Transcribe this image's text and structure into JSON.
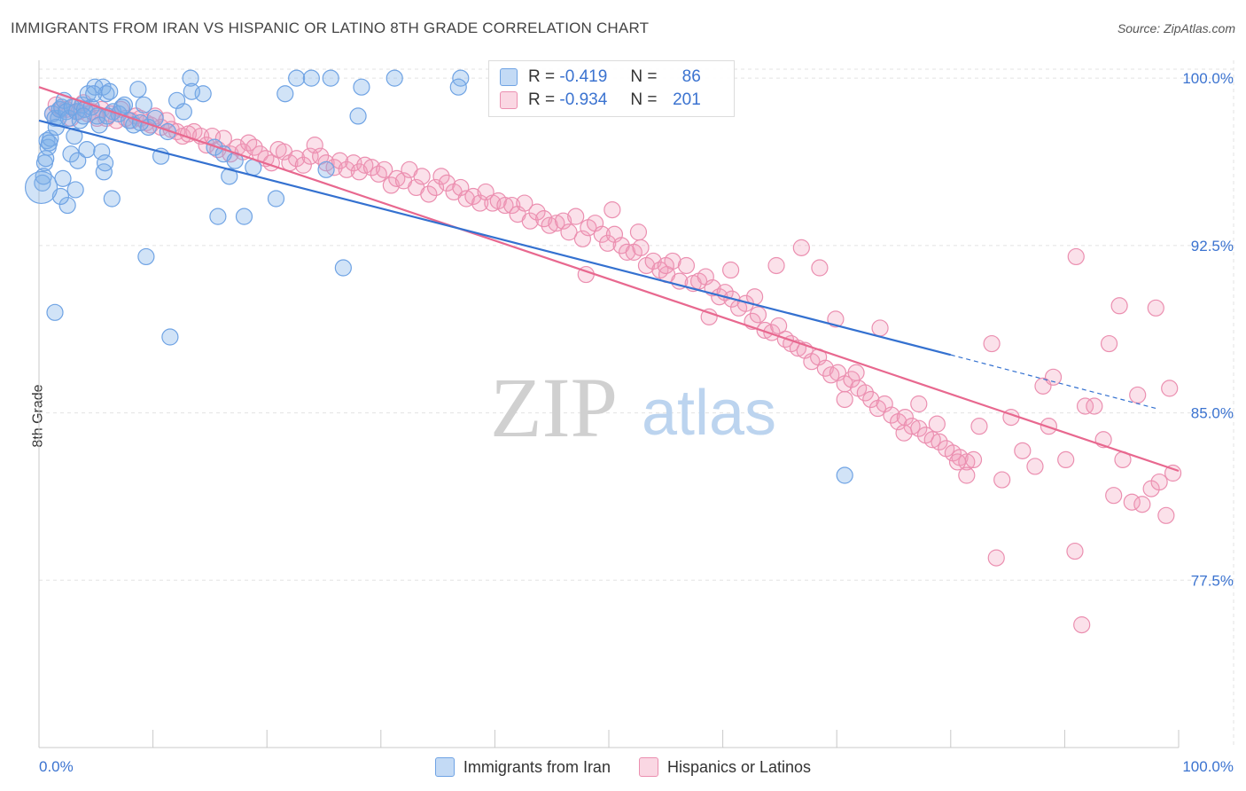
{
  "header": {
    "title": "IMMIGRANTS FROM IRAN VS HISPANIC OR LATINO 8TH GRADE CORRELATION CHART",
    "source": "Source: ZipAtlas.com"
  },
  "watermark": {
    "part1": "ZIP",
    "part2": "atlas"
  },
  "legend": {
    "rows": [
      {
        "r_label": "R =",
        "r_value": "-0.419",
        "n_label": "N =",
        "n_value": "86",
        "color": "#7aaee8"
      },
      {
        "r_label": "R =",
        "r_value": "-0.934",
        "n_label": "N =",
        "n_value": "201",
        "color": "#f29ab8"
      }
    ]
  },
  "bottom_legend": {
    "items": [
      {
        "label": "Immigrants from Iran",
        "color": "#7aaee8"
      },
      {
        "label": "Hispanics or Latinos",
        "color": "#f29ab8"
      }
    ]
  },
  "colors": {
    "blue_line": "#3471d0",
    "pink_line": "#e8688f",
    "blue_fill": "rgba(122,174,232,0.35)",
    "blue_stroke": "#6fa3e4",
    "pink_fill": "rgba(242,154,184,0.30)",
    "pink_stroke": "#eb8fb0",
    "axis_text": "#3b73d0",
    "grid": "#e3e3e3"
  },
  "chart_data": {
    "type": "scatter",
    "title": "IMMIGRANTS FROM IRAN VS HISPANIC OR LATINO 8TH GRADE CORRELATION CHART",
    "xlabel": "",
    "ylabel": "8th Grade",
    "xlim": [
      0,
      100
    ],
    "ylim": [
      70.0,
      100.8
    ],
    "x_tick_labels": [
      "0.0%",
      "100.0%"
    ],
    "y_ticks": [
      77.5,
      85.0,
      92.5,
      100.0
    ],
    "y_tick_labels": [
      "77.5%",
      "85.0%",
      "92.5%",
      "100.0%"
    ],
    "grid": true,
    "legend_position": "top-center",
    "series": [
      {
        "name": "Immigrants from Iran",
        "R": -0.419,
        "N": 86,
        "trend": {
          "x0": 0,
          "y0": 98.1,
          "x1": 80,
          "y1": 87.6,
          "dash_to_x": 98,
          "dash_to_y": 85.2
        },
        "points": [
          [
            0.3,
            95.3
          ],
          [
            0.5,
            96.2
          ],
          [
            0.6,
            96.4
          ],
          [
            0.7,
            97.2
          ],
          [
            0.8,
            96.9
          ],
          [
            1.0,
            97.3
          ],
          [
            1.2,
            98.4
          ],
          [
            1.4,
            98.2
          ],
          [
            1.5,
            97.8
          ],
          [
            1.7,
            98.2
          ],
          [
            1.8,
            98.6
          ],
          [
            2.0,
            98.7
          ],
          [
            2.2,
            99.0
          ],
          [
            2.4,
            98.5
          ],
          [
            2.6,
            98.2
          ],
          [
            2.9,
            98.7
          ],
          [
            3.1,
            97.4
          ],
          [
            3.3,
            98.5
          ],
          [
            3.6,
            98.1
          ],
          [
            3.8,
            98.8
          ],
          [
            4.0,
            98.6
          ],
          [
            4.3,
            99.3
          ],
          [
            4.6,
            98.7
          ],
          [
            4.9,
            99.6
          ],
          [
            5.1,
            98.3
          ],
          [
            5.3,
            97.9
          ],
          [
            5.6,
            99.6
          ],
          [
            5.9,
            99.3
          ],
          [
            6.2,
            99.4
          ],
          [
            6.5,
            98.5
          ],
          [
            2.1,
            95.5
          ],
          [
            2.8,
            96.6
          ],
          [
            3.2,
            95.0
          ],
          [
            3.4,
            96.3
          ],
          [
            4.2,
            96.8
          ],
          [
            5.5,
            96.7
          ],
          [
            5.7,
            95.8
          ],
          [
            5.8,
            96.2
          ],
          [
            6.4,
            94.6
          ],
          [
            7.0,
            98.4
          ],
          [
            7.5,
            98.8
          ],
          [
            7.9,
            98.1
          ],
          [
            8.3,
            97.9
          ],
          [
            8.7,
            99.5
          ],
          [
            9.2,
            98.8
          ],
          [
            9.6,
            97.8
          ],
          [
            10.2,
            98.2
          ],
          [
            10.7,
            96.5
          ],
          [
            11.3,
            97.6
          ],
          [
            12.1,
            99.0
          ],
          [
            12.7,
            98.5
          ],
          [
            13.3,
            100.0
          ],
          [
            14.4,
            99.3
          ],
          [
            15.4,
            96.9
          ],
          [
            16.2,
            96.6
          ],
          [
            16.7,
            95.6
          ],
          [
            17.2,
            96.3
          ],
          [
            18.0,
            93.8
          ],
          [
            18.8,
            96.0
          ],
          [
            20.8,
            94.6
          ],
          [
            21.6,
            99.3
          ],
          [
            22.6,
            100.0
          ],
          [
            23.9,
            100.0
          ],
          [
            25.6,
            100.0
          ],
          [
            25.2,
            95.9
          ],
          [
            26.7,
            91.5
          ],
          [
            28.0,
            98.3
          ],
          [
            28.3,
            99.6
          ],
          [
            31.2,
            100.0
          ],
          [
            2.5,
            94.3
          ],
          [
            1.9,
            94.7
          ],
          [
            1.4,
            89.5
          ],
          [
            9.4,
            92.0
          ],
          [
            11.5,
            88.4
          ],
          [
            15.7,
            93.8
          ],
          [
            37.0,
            100.0
          ],
          [
            36.8,
            99.6
          ],
          [
            6.0,
            98.3
          ],
          [
            8.9,
            98.0
          ],
          [
            3.9,
            98.3
          ],
          [
            0.9,
            97.1
          ],
          [
            0.4,
            95.6
          ],
          [
            70.7,
            82.2
          ],
          [
            4.8,
            99.3
          ],
          [
            7.3,
            98.7
          ],
          [
            13.4,
            99.4
          ]
        ]
      },
      {
        "name": "Hispanics or Latinos",
        "R": -0.934,
        "N": 201,
        "trend": {
          "x0": 0,
          "y0": 99.6,
          "x1": 100,
          "y1": 82.4
        },
        "points": [
          [
            1.2,
            98.4
          ],
          [
            1.5,
            98.8
          ],
          [
            2.0,
            98.6
          ],
          [
            2.4,
            98.6
          ],
          [
            2.8,
            98.2
          ],
          [
            3.1,
            98.7
          ],
          [
            3.5,
            98.5
          ],
          [
            3.9,
            98.9
          ],
          [
            4.3,
            98.4
          ],
          [
            4.7,
            98.5
          ],
          [
            5.1,
            98.2
          ],
          [
            5.5,
            98.6
          ],
          [
            5.9,
            98.2
          ],
          [
            6.3,
            98.4
          ],
          [
            6.8,
            98.1
          ],
          [
            7.2,
            98.6
          ],
          [
            7.6,
            98.2
          ],
          [
            8.1,
            98.1
          ],
          [
            8.5,
            98.3
          ],
          [
            8.9,
            98.2
          ],
          [
            9.4,
            98.0
          ],
          [
            9.8,
            97.9
          ],
          [
            10.2,
            98.3
          ],
          [
            10.7,
            97.8
          ],
          [
            11.2,
            98.1
          ],
          [
            11.6,
            97.7
          ],
          [
            12.1,
            97.6
          ],
          [
            12.6,
            97.4
          ],
          [
            13.1,
            97.5
          ],
          [
            13.6,
            97.6
          ],
          [
            14.2,
            97.4
          ],
          [
            14.7,
            97.0
          ],
          [
            15.2,
            97.4
          ],
          [
            15.7,
            96.8
          ],
          [
            16.2,
            97.3
          ],
          [
            16.8,
            96.6
          ],
          [
            17.4,
            96.9
          ],
          [
            17.9,
            96.7
          ],
          [
            18.4,
            97.1
          ],
          [
            18.9,
            96.9
          ],
          [
            19.4,
            96.6
          ],
          [
            19.9,
            96.4
          ],
          [
            20.4,
            96.2
          ],
          [
            21.0,
            96.8
          ],
          [
            21.5,
            96.7
          ],
          [
            22.0,
            96.2
          ],
          [
            22.6,
            96.4
          ],
          [
            23.2,
            96.1
          ],
          [
            23.8,
            96.5
          ],
          [
            24.2,
            97.0
          ],
          [
            24.7,
            96.5
          ],
          [
            25.2,
            96.2
          ],
          [
            25.9,
            96.0
          ],
          [
            26.4,
            96.3
          ],
          [
            27.0,
            95.9
          ],
          [
            27.6,
            96.2
          ],
          [
            28.1,
            95.8
          ],
          [
            28.6,
            96.1
          ],
          [
            29.2,
            96.0
          ],
          [
            29.8,
            95.7
          ],
          [
            30.3,
            95.9
          ],
          [
            30.9,
            95.2
          ],
          [
            31.4,
            95.5
          ],
          [
            32.0,
            95.4
          ],
          [
            32.5,
            95.9
          ],
          [
            33.1,
            95.1
          ],
          [
            33.6,
            95.6
          ],
          [
            34.2,
            94.8
          ],
          [
            34.8,
            95.1
          ],
          [
            35.3,
            95.6
          ],
          [
            35.8,
            95.3
          ],
          [
            36.4,
            94.9
          ],
          [
            37.0,
            95.1
          ],
          [
            37.5,
            94.6
          ],
          [
            38.1,
            94.7
          ],
          [
            38.7,
            94.4
          ],
          [
            39.2,
            94.9
          ],
          [
            39.8,
            94.4
          ],
          [
            40.3,
            94.5
          ],
          [
            40.9,
            94.3
          ],
          [
            41.5,
            94.3
          ],
          [
            42.0,
            93.9
          ],
          [
            42.6,
            94.4
          ],
          [
            43.1,
            93.6
          ],
          [
            43.7,
            94.0
          ],
          [
            44.3,
            93.7
          ],
          [
            44.8,
            93.4
          ],
          [
            45.4,
            93.5
          ],
          [
            46.0,
            93.6
          ],
          [
            46.5,
            93.1
          ],
          [
            47.1,
            93.8
          ],
          [
            47.7,
            92.8
          ],
          [
            48.2,
            93.3
          ],
          [
            48.8,
            93.5
          ],
          [
            49.4,
            93.0
          ],
          [
            49.9,
            92.6
          ],
          [
            50.5,
            93.0
          ],
          [
            51.1,
            92.5
          ],
          [
            51.6,
            92.2
          ],
          [
            52.2,
            92.2
          ],
          [
            52.8,
            92.4
          ],
          [
            53.3,
            91.6
          ],
          [
            53.9,
            91.8
          ],
          [
            54.5,
            91.4
          ],
          [
            55.1,
            91.2
          ],
          [
            55.6,
            91.8
          ],
          [
            56.2,
            90.9
          ],
          [
            56.8,
            91.6
          ],
          [
            57.4,
            90.8
          ],
          [
            57.9,
            90.9
          ],
          [
            58.5,
            91.1
          ],
          [
            59.1,
            90.6
          ],
          [
            59.7,
            90.2
          ],
          [
            60.2,
            90.4
          ],
          [
            60.8,
            90.1
          ],
          [
            61.4,
            89.7
          ],
          [
            62.0,
            89.9
          ],
          [
            62.6,
            89.1
          ],
          [
            63.1,
            89.4
          ],
          [
            63.7,
            88.7
          ],
          [
            64.3,
            88.6
          ],
          [
            64.9,
            88.9
          ],
          [
            65.5,
            88.3
          ],
          [
            66.0,
            88.1
          ],
          [
            66.6,
            87.9
          ],
          [
            67.2,
            87.8
          ],
          [
            67.8,
            87.3
          ],
          [
            68.4,
            87.5
          ],
          [
            69.0,
            87.0
          ],
          [
            69.5,
            86.7
          ],
          [
            70.1,
            86.8
          ],
          [
            70.7,
            86.3
          ],
          [
            71.3,
            86.5
          ],
          [
            71.9,
            86.1
          ],
          [
            72.5,
            85.9
          ],
          [
            73.0,
            85.6
          ],
          [
            73.6,
            85.2
          ],
          [
            74.2,
            85.4
          ],
          [
            74.8,
            84.9
          ],
          [
            75.4,
            84.6
          ],
          [
            76.0,
            84.8
          ],
          [
            76.6,
            84.4
          ],
          [
            77.2,
            84.3
          ],
          [
            77.8,
            84.0
          ],
          [
            78.4,
            83.8
          ],
          [
            79.0,
            83.7
          ],
          [
            79.6,
            83.4
          ],
          [
            80.2,
            83.2
          ],
          [
            80.8,
            83.0
          ],
          [
            81.4,
            82.8
          ],
          [
            48.0,
            91.2
          ],
          [
            50.3,
            94.1
          ],
          [
            52.6,
            93.1
          ],
          [
            55.0,
            91.6
          ],
          [
            58.8,
            89.3
          ],
          [
            60.7,
            91.4
          ],
          [
            62.8,
            90.2
          ],
          [
            64.7,
            91.6
          ],
          [
            66.9,
            92.4
          ],
          [
            68.5,
            91.5
          ],
          [
            69.9,
            89.2
          ],
          [
            70.7,
            85.6
          ],
          [
            71.7,
            86.8
          ],
          [
            73.8,
            88.8
          ],
          [
            75.9,
            84.1
          ],
          [
            77.2,
            85.4
          ],
          [
            78.8,
            84.5
          ],
          [
            80.6,
            82.8
          ],
          [
            81.4,
            82.2
          ],
          [
            82.5,
            84.4
          ],
          [
            83.6,
            88.1
          ],
          [
            84.5,
            82.0
          ],
          [
            85.3,
            84.8
          ],
          [
            86.3,
            83.3
          ],
          [
            87.4,
            82.6
          ],
          [
            88.1,
            86.2
          ],
          [
            89.0,
            86.6
          ],
          [
            90.1,
            82.9
          ],
          [
            90.9,
            78.8
          ],
          [
            91.8,
            85.3
          ],
          [
            92.6,
            85.3
          ],
          [
            93.4,
            83.8
          ],
          [
            94.3,
            81.3
          ],
          [
            95.1,
            82.9
          ],
          [
            95.9,
            81.0
          ],
          [
            96.8,
            80.9
          ],
          [
            97.6,
            81.6
          ],
          [
            98.3,
            81.9
          ],
          [
            98.9,
            80.4
          ],
          [
            99.2,
            86.1
          ],
          [
            91.0,
            92.0
          ],
          [
            94.8,
            89.8
          ],
          [
            96.4,
            85.8
          ],
          [
            98.0,
            89.7
          ],
          [
            99.5,
            82.3
          ],
          [
            91.5,
            75.5
          ],
          [
            84.0,
            78.5
          ],
          [
            88.6,
            84.4
          ],
          [
            82.0,
            82.9
          ],
          [
            93.9,
            88.1
          ]
        ]
      }
    ]
  }
}
